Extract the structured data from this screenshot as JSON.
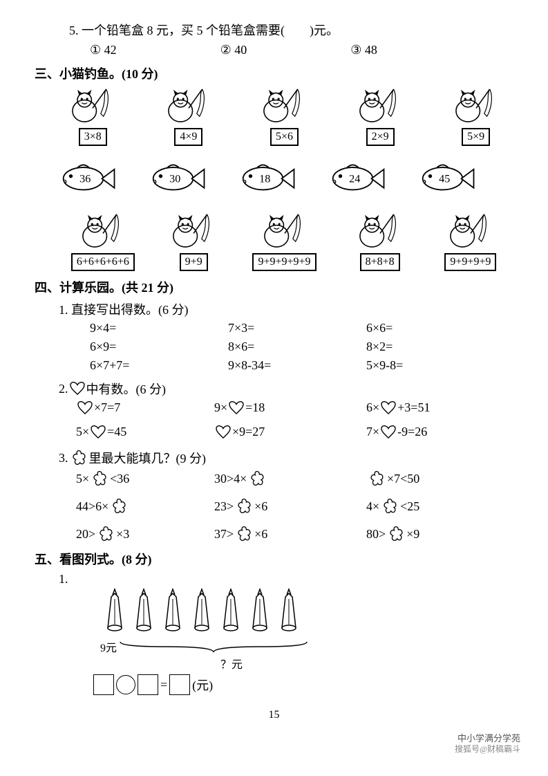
{
  "q5": {
    "text": "5. 一个铅笔盒 8 元，买 5 个铅笔盒需要(　　)元。",
    "opt1": "① 42",
    "opt2": "② 40",
    "opt3": "③ 48"
  },
  "sec3": {
    "title": "三、小猫钓鱼。(10 分)",
    "cats": [
      "3×8",
      "4×9",
      "5×6",
      "2×9",
      "5×9"
    ],
    "fish": [
      "36",
      "30",
      "18",
      "24",
      "45"
    ],
    "cats2": [
      "6+6+6+6+6",
      "9+9",
      "9+9+9+9+9",
      "8+8+8",
      "9+9+9+9"
    ]
  },
  "sec4": {
    "title": "四、计算乐园。(共 21 分)",
    "sub1_title": "1. 直接写出得数。(6 分)",
    "sub1": [
      "9×4=",
      "7×3=",
      "6×6=",
      "6×9=",
      "8×6=",
      "8×2=",
      "6×7+7=",
      "9×8-34=",
      "5×9-8="
    ],
    "sub2_title": "2. ♡中有数。(6 分)",
    "sub2": [
      {
        "pre": "",
        "mid": "×7=7"
      },
      {
        "pre": "9×",
        "mid": "=18"
      },
      {
        "pre": "6×",
        "mid": "+3=51"
      },
      {
        "pre": "5×",
        "mid": "=45"
      },
      {
        "pre": "",
        "mid": "×9=27"
      },
      {
        "pre": "7×",
        "mid": "-9=26"
      }
    ],
    "sub3_title": "3. ⚘ 里最大能填几？(9 分)",
    "sub3": [
      {
        "a": "5×",
        "b": "<36"
      },
      {
        "a": "30>4×",
        "b": ""
      },
      {
        "a": "",
        "b": "×7<50"
      },
      {
        "a": "44>6×",
        "b": ""
      },
      {
        "a": "23>",
        "b": "×6"
      },
      {
        "a": "4×",
        "b": "<25"
      },
      {
        "a": "20>",
        "b": "×3"
      },
      {
        "a": "37>",
        "b": "×6"
      },
      {
        "a": "80>",
        "b": "×9"
      }
    ]
  },
  "sec5": {
    "title": "五、看图列式。(8 分)",
    "sub1": "1.",
    "price": "9元",
    "question": "？元",
    "unit": "(元)"
  },
  "page": "15",
  "watermark": {
    "line1": "中小学满分学苑",
    "line2": "搜狐号@财稿霸斗"
  }
}
